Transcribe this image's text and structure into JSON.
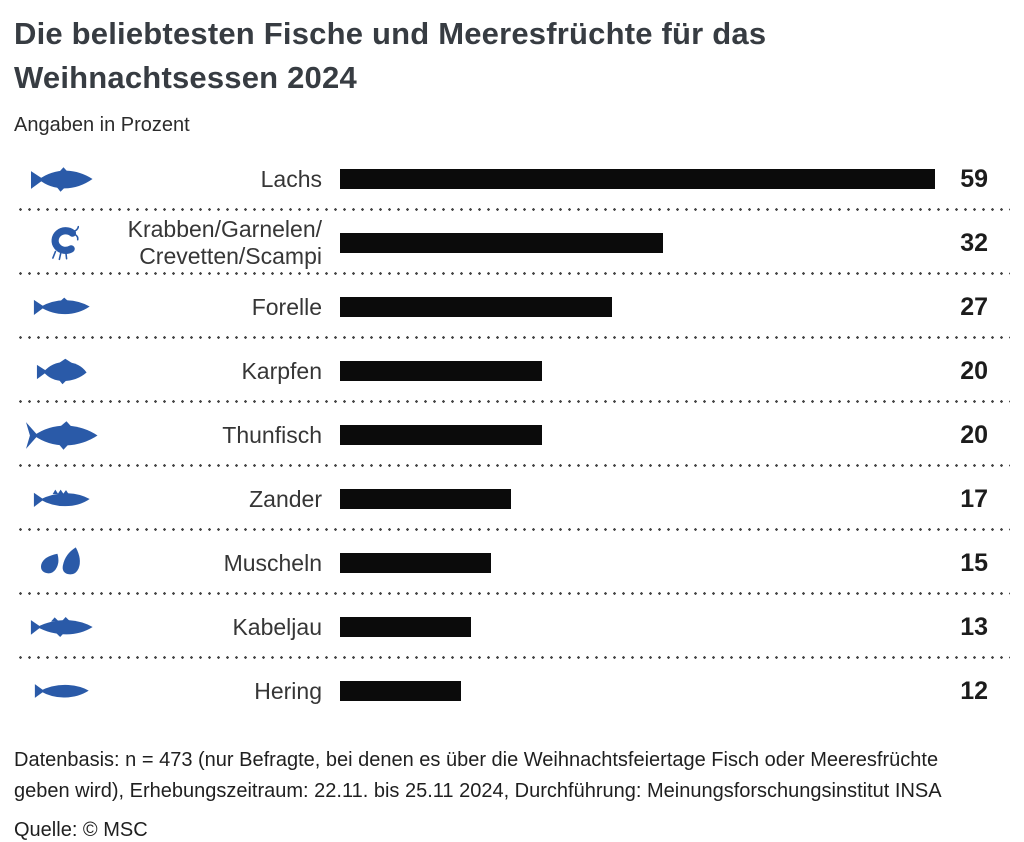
{
  "header": {
    "title": "Die beliebtesten Fische und Meeresfrüchte für das Weihnachtsessen 2024",
    "subtitle": "Angaben in Prozent"
  },
  "chart_data": {
    "type": "bar",
    "orientation": "horizontal",
    "unit": "percent",
    "title": "Die beliebtesten Fische und Meeresfrüchte für das Weihnachtsessen 2024",
    "value_axis_max": 59,
    "bar_color": "#0b0b0b",
    "icon_color": "#2a5aa8",
    "grid": false,
    "categories": [
      "Lachs",
      "Krabben/Garnelen/\nCrevetten/Scampi",
      "Forelle",
      "Karpfen",
      "Thunfisch",
      "Zander",
      "Muscheln",
      "Kabeljau",
      "Hering"
    ],
    "values": [
      59,
      32,
      27,
      20,
      20,
      17,
      15,
      13,
      12
    ],
    "icons": [
      "salmon-icon",
      "shrimp-icon",
      "trout-icon",
      "carp-icon",
      "tuna-icon",
      "pikeperch-icon",
      "mussels-icon",
      "cod-icon",
      "herring-icon"
    ]
  },
  "footer": {
    "note": "Datenbasis: n = 473 (nur Befragte, bei denen es über die Weihnachtsfeiertage Fisch oder Meeresfrüchte geben wird), Erhebungszeitraum: 22.11. bis 25.11 2024, Durchführung: Meinungsforschungsinstitut INSA",
    "source": "Quelle: © MSC"
  }
}
